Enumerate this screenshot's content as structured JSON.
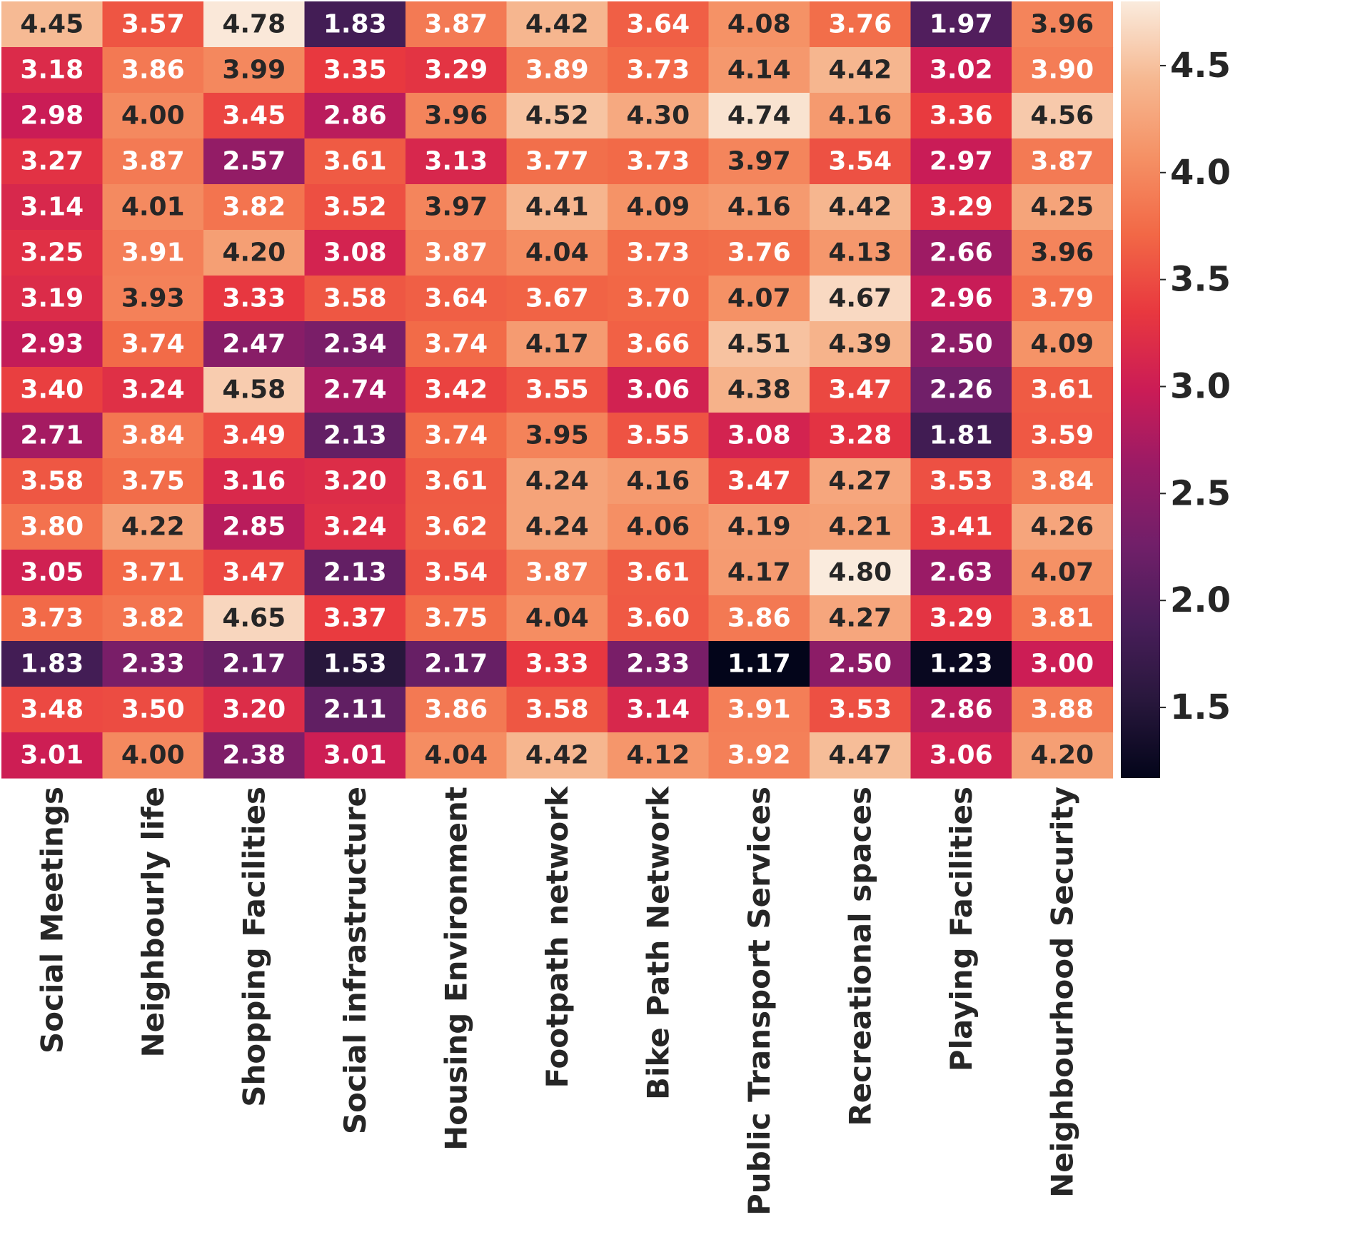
{
  "chart_data": {
    "type": "heatmap",
    "colormap": "rocket",
    "x_labels": [
      "Social Meetings",
      "Neighbourly life",
      "Shopping Facilities",
      "Social infrastructure",
      "Housing Environment",
      "Footpath network",
      "Bike Path Network",
      "Public Transport Services",
      "Recreational spaces",
      "Playing Facilities",
      "Neighbourhood Security"
    ],
    "values": [
      [
        4.45,
        3.57,
        4.78,
        1.83,
        3.87,
        4.42,
        3.64,
        4.08,
        3.76,
        1.97,
        3.96
      ],
      [
        3.18,
        3.86,
        3.99,
        3.35,
        3.29,
        3.89,
        3.73,
        4.14,
        4.42,
        3.02,
        3.9
      ],
      [
        2.98,
        4.0,
        3.45,
        2.86,
        3.96,
        4.52,
        4.3,
        4.74,
        4.16,
        3.36,
        4.56
      ],
      [
        3.27,
        3.87,
        2.57,
        3.61,
        3.13,
        3.77,
        3.73,
        3.97,
        3.54,
        2.97,
        3.87
      ],
      [
        3.14,
        4.01,
        3.82,
        3.52,
        3.97,
        4.41,
        4.09,
        4.16,
        4.42,
        3.29,
        4.25
      ],
      [
        3.25,
        3.91,
        4.2,
        3.08,
        3.87,
        4.04,
        3.73,
        3.76,
        4.13,
        2.66,
        3.96
      ],
      [
        3.19,
        3.93,
        3.33,
        3.58,
        3.64,
        3.67,
        3.7,
        4.07,
        4.67,
        2.96,
        3.79
      ],
      [
        2.93,
        3.74,
        2.47,
        2.34,
        3.74,
        4.17,
        3.66,
        4.51,
        4.39,
        2.5,
        4.09
      ],
      [
        3.4,
        3.24,
        4.58,
        2.74,
        3.42,
        3.55,
        3.06,
        4.38,
        3.47,
        2.26,
        3.61
      ],
      [
        2.71,
        3.84,
        3.49,
        2.13,
        3.74,
        3.95,
        3.55,
        3.08,
        3.28,
        1.81,
        3.59
      ],
      [
        3.58,
        3.75,
        3.16,
        3.2,
        3.61,
        4.24,
        4.16,
        3.47,
        4.27,
        3.53,
        3.84
      ],
      [
        3.8,
        4.22,
        2.85,
        3.24,
        3.62,
        4.24,
        4.06,
        4.19,
        4.21,
        3.41,
        4.26
      ],
      [
        3.05,
        3.71,
        3.47,
        2.13,
        3.54,
        3.87,
        3.61,
        4.17,
        4.8,
        2.63,
        4.07
      ],
      [
        3.73,
        3.82,
        4.65,
        3.37,
        3.75,
        4.04,
        3.6,
        3.86,
        4.27,
        3.29,
        3.81
      ],
      [
        1.83,
        2.33,
        2.17,
        1.53,
        2.17,
        3.33,
        2.33,
        1.17,
        2.5,
        1.23,
        3.0
      ],
      [
        3.48,
        3.5,
        3.2,
        2.11,
        3.86,
        3.58,
        3.14,
        3.91,
        3.53,
        2.86,
        3.88
      ],
      [
        3.01,
        4.0,
        2.38,
        3.01,
        4.04,
        4.42,
        4.12,
        3.92,
        4.47,
        3.06,
        4.2
      ]
    ],
    "value_format": "0.00",
    "colorbar": {
      "vmin": 1.17,
      "vmax": 4.8,
      "ticks": [
        1.5,
        2.0,
        2.5,
        3.0,
        3.5,
        4.0,
        4.5
      ],
      "tick_labels": [
        "1.5",
        "2.0",
        "2.5",
        "3.0",
        "3.5",
        "4.0",
        "4.5"
      ],
      "position": "right"
    },
    "title": "",
    "xlabel": "",
    "ylabel": "",
    "y_tick_labels_visible": false
  }
}
